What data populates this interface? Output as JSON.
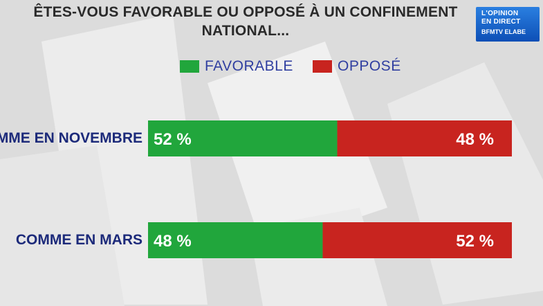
{
  "title": "ÊTES-VOUS FAVORABLE OU OPPOSÉ À UN CONFINEMENT NATIONAL...",
  "logo": {
    "line1": "L'OPINION",
    "line2": "EN DIRECT",
    "line3": "BFMTV ELABE"
  },
  "legend": {
    "favorable": "FAVORABLE",
    "oppose": "OPPOSÉ"
  },
  "rows": [
    {
      "label": "COMME EN NOVEMBRE"
    },
    {
      "label": "COMME EN MARS"
    }
  ],
  "colors": {
    "favorable": "#21a63c",
    "oppose": "#c8241f",
    "label": "#1c2a7a",
    "legend_text": "#2f3ea0"
  },
  "chart_data": {
    "type": "bar",
    "orientation": "horizontal",
    "stacked": true,
    "title": "ÊTES-VOUS FAVORABLE OU OPPOSÉ À UN CONFINEMENT NATIONAL...",
    "categories": [
      "COMME EN NOVEMBRE",
      "COMME EN MARS"
    ],
    "series": [
      {
        "name": "FAVORABLE",
        "values": [
          52,
          48
        ],
        "labels": [
          "52 %",
          "48 %"
        ]
      },
      {
        "name": "OPPOSÉ",
        "values": [
          48,
          52
        ],
        "labels": [
          "48 %",
          "52 %"
        ]
      }
    ],
    "xlim": [
      0,
      100
    ],
    "grid": false,
    "legend_position": "top"
  }
}
